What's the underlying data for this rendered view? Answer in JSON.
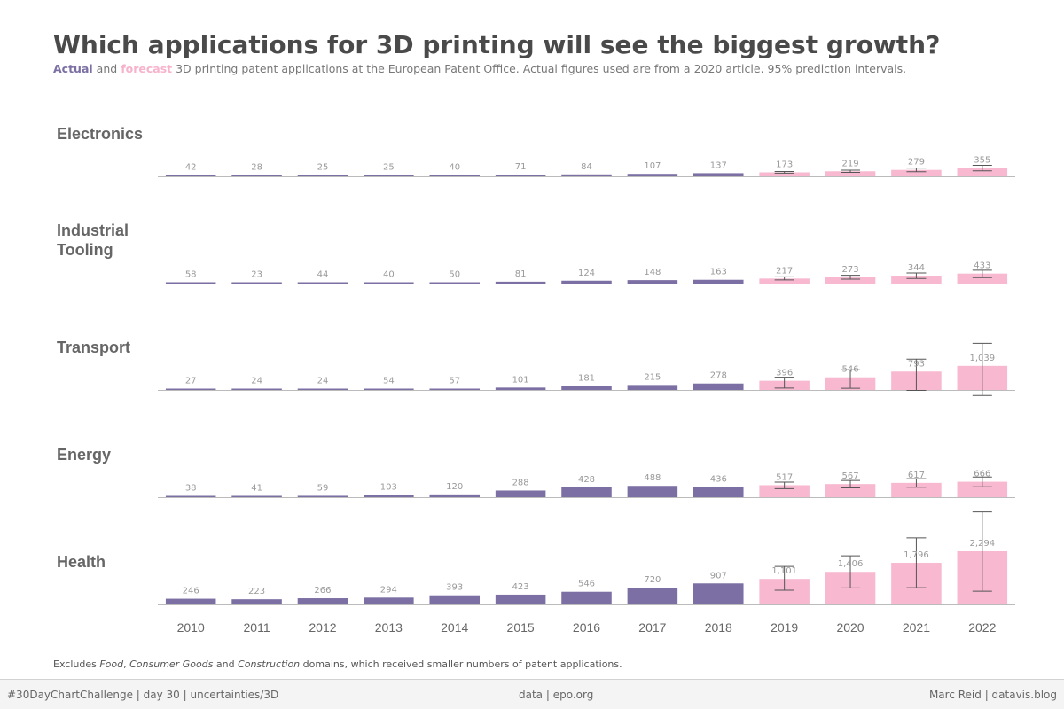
{
  "title": "Which applications for 3D printing will see the biggest growth?",
  "subtitle": {
    "actual_label": "Actual",
    "and_text": "and",
    "forecast_label": "forecast",
    "rest": "3D printing patent applications at the European Patent Office. Actual figures used are from a 2020 article. 95% prediction intervals."
  },
  "colors": {
    "actual": "#7b6fa3",
    "forecast": "#f7b8d0",
    "error_bar": "#555555",
    "baseline": "#bbbbbb",
    "label": "#999999",
    "panel_title": "#666666"
  },
  "chart_data": {
    "type": "bar",
    "x": [
      "2010",
      "2011",
      "2012",
      "2013",
      "2014",
      "2015",
      "2016",
      "2017",
      "2018",
      "2019",
      "2020",
      "2021",
      "2022"
    ],
    "forecast_start": "2019",
    "shared_y_scale": true,
    "panels": [
      {
        "name": "Electronics",
        "values": [
          42,
          28,
          25,
          25,
          40,
          71,
          84,
          107,
          137,
          173,
          219,
          279,
          355
        ],
        "labels": [
          "42",
          "28",
          "25",
          "25",
          "40",
          "71",
          "84",
          "107",
          "137",
          "173",
          "219",
          "279",
          "355"
        ],
        "intervals": [
          null,
          null,
          null,
          null,
          null,
          null,
          null,
          null,
          null,
          [
            140,
            210
          ],
          [
            170,
            270
          ],
          [
            200,
            360
          ],
          [
            240,
            480
          ]
        ]
      },
      {
        "name": "Industrial Tooling",
        "values": [
          58,
          23,
          44,
          40,
          50,
          81,
          124,
          148,
          163,
          217,
          273,
          344,
          433
        ],
        "labels": [
          "58",
          "23",
          "44",
          "40",
          "50",
          "81",
          "124",
          "148",
          "163",
          "217",
          "273",
          "344",
          "433"
        ],
        "intervals": [
          null,
          null,
          null,
          null,
          null,
          null,
          null,
          null,
          null,
          [
            160,
            290
          ],
          [
            190,
            360
          ],
          [
            220,
            460
          ],
          [
            260,
            580
          ]
        ]
      },
      {
        "name": "Transport",
        "values": [
          27,
          24,
          24,
          54,
          57,
          101,
          181,
          215,
          278,
          396,
          546,
          793,
          1039
        ],
        "labels": [
          "27",
          "24",
          "24",
          "54",
          "57",
          "101",
          "181",
          "215",
          "278",
          "396",
          "546",
          "793",
          "1,039"
        ],
        "intervals": [
          null,
          null,
          null,
          null,
          null,
          null,
          null,
          null,
          null,
          [
            80,
            550
          ],
          [
            70,
            870
          ],
          [
            -20,
            1330
          ],
          [
            -240,
            2010
          ]
        ]
      },
      {
        "name": "Energy",
        "values": [
          38,
          41,
          59,
          103,
          120,
          288,
          428,
          488,
          436,
          517,
          567,
          617,
          666
        ],
        "labels": [
          "38",
          "41",
          "59",
          "103",
          "120",
          "288",
          "428",
          "488",
          "436",
          "517",
          "567",
          "617",
          "666"
        ],
        "intervals": [
          null,
          null,
          null,
          null,
          null,
          null,
          null,
          null,
          null,
          [
            370,
            650
          ],
          [
            400,
            720
          ],
          [
            430,
            800
          ],
          [
            450,
            870
          ]
        ]
      },
      {
        "name": "Health",
        "values": [
          246,
          223,
          266,
          294,
          393,
          423,
          546,
          720,
          907,
          1101,
          1406,
          1796,
          2294
        ],
        "labels": [
          "246",
          "223",
          "266",
          "294",
          "393",
          "423",
          "546",
          "720",
          "907",
          "1,101",
          "1,406",
          "1,796",
          "2,294"
        ],
        "intervals": [
          null,
          null,
          null,
          null,
          null,
          null,
          null,
          null,
          null,
          [
            610,
            1640
          ],
          [
            710,
            2100
          ],
          [
            720,
            2870
          ],
          [
            570,
            3990
          ]
        ]
      }
    ],
    "ylim": [
      0,
      2294
    ],
    "legend": "subtitle-colored-words"
  },
  "footnote": {
    "p1": "Excludes ",
    "food": "Food",
    "comma": ", ",
    "consumer": "Consumer Goods",
    "and": " and ",
    "construction": "Construction",
    "p2": " domains, which received smaller numbers of patent applications."
  },
  "footer": {
    "left": "#30DayChartChallenge | day 30 | uncertainties/3D",
    "center": "data | epo.org",
    "right": "Marc Reid | datavis.blog"
  }
}
